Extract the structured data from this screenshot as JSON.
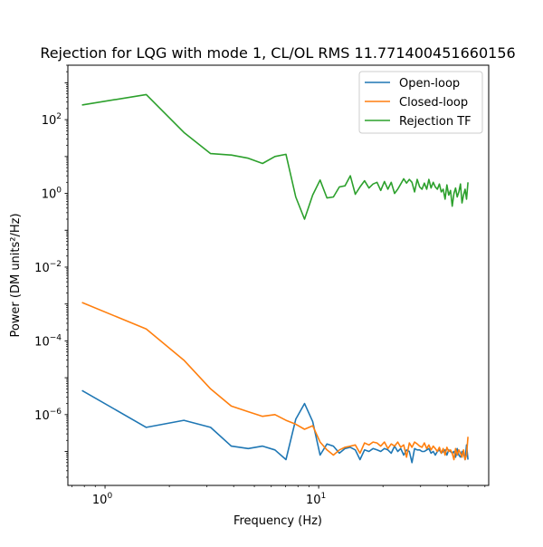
{
  "chart_data": {
    "type": "line",
    "title": "Rejection for LQG with mode 1, CL/OL RMS 11.771400451660156",
    "xlabel": "Frequency (Hz)",
    "ylabel": "Power (DM units²/Hz)",
    "xscale": "log",
    "yscale": "log",
    "xlim": [
      0.67,
      62.5
    ],
    "ylim": [
      1.2e-08,
      3000
    ],
    "x_ticks": [
      {
        "value": 1,
        "label": "10^0"
      },
      {
        "value": 10,
        "label": "10^1"
      }
    ],
    "y_ticks": [
      {
        "value": 1e-06,
        "label": "10^-6"
      },
      {
        "value": 0.0001,
        "label": "10^-4"
      },
      {
        "value": 0.01,
        "label": "10^-2"
      },
      {
        "value": 1,
        "label": "10^0"
      },
      {
        "value": 100,
        "label": "10^2"
      }
    ],
    "grid": false,
    "legend_position": "top-right",
    "series": [
      {
        "name": "Open-loop",
        "color": "#1f77b4",
        "x": [
          0.78,
          1.56,
          2.34,
          3.12,
          3.9,
          4.68,
          5.46,
          6.24,
          7.03,
          7.81,
          8.59,
          9.37,
          10.16,
          10.94,
          11.72,
          12.5,
          13.28,
          14.06,
          14.84,
          15.62,
          16.4,
          17.19,
          17.97,
          18.75,
          19.53,
          20.31,
          21.09,
          21.87,
          22.66,
          23.44,
          24.22,
          25,
          25.78,
          26.56,
          27.34,
          28.12,
          28.91,
          29.69,
          30.47,
          31.25,
          32.03,
          32.81,
          33.59,
          34.37,
          35.16,
          35.94,
          36.72,
          37.5,
          38.28,
          39.06,
          39.84,
          40.62,
          41.4,
          42.19,
          42.97,
          43.75,
          44.53,
          45.31,
          46.09,
          46.87,
          47.66,
          48.44,
          49.22,
          50
        ],
        "y": [
          4.5e-06,
          4.5e-07,
          7e-07,
          4.5e-07,
          1.4e-07,
          1.2e-07,
          1.4e-07,
          1.1e-07,
          6e-08,
          7.5e-07,
          2e-06,
          6.5e-07,
          8e-08,
          1.6e-07,
          1.4e-07,
          9e-08,
          1.2e-07,
          1.3e-07,
          1.1e-07,
          6e-08,
          1.1e-07,
          1e-07,
          1.2e-07,
          1.1e-07,
          1e-07,
          1.2e-07,
          1.1e-07,
          9e-08,
          1.4e-07,
          1e-07,
          1.2e-07,
          8e-08,
          1.1e-07,
          1e-07,
          5e-08,
          1.2e-07,
          1.1e-07,
          1.1e-07,
          1e-07,
          1e-07,
          1.1e-07,
          1.2e-07,
          9e-08,
          1e-07,
          8e-08,
          1e-07,
          1.1e-07,
          9e-08,
          1e-07,
          1.1e-07,
          8e-08,
          1.1e-07,
          1e-07,
          9e-08,
          1e-07,
          7e-08,
          1.2e-07,
          8e-08,
          7e-08,
          1e-07,
          9e-08,
          6e-08,
          1.5e-07,
          6e-08
        ]
      },
      {
        "name": "Closed-loop",
        "color": "#ff7f0e",
        "x": [
          0.78,
          1.56,
          2.34,
          3.12,
          3.9,
          4.68,
          5.46,
          6.24,
          7.03,
          7.81,
          8.59,
          9.37,
          10.16,
          10.94,
          11.72,
          12.5,
          13.28,
          14.06,
          14.84,
          15.62,
          16.4,
          17.19,
          17.97,
          18.75,
          19.53,
          20.31,
          21.09,
          21.87,
          22.66,
          23.44,
          24.22,
          25,
          25.78,
          26.56,
          27.34,
          28.12,
          28.91,
          29.69,
          30.47,
          31.25,
          32.03,
          32.81,
          33.59,
          34.37,
          35.16,
          35.94,
          36.72,
          37.5,
          38.28,
          39.06,
          39.84,
          40.62,
          41.4,
          42.19,
          42.97,
          43.75,
          44.53,
          45.31,
          46.09,
          46.87,
          47.66,
          48.44,
          49.22,
          50
        ],
        "y": [
          0.0011,
          0.00021,
          3e-05,
          5e-06,
          1.7e-06,
          1.2e-06,
          9e-07,
          1e-06,
          7e-07,
          5.5e-07,
          4e-07,
          5e-07,
          1.8e-07,
          1.1e-07,
          8e-08,
          1.1e-07,
          1.3e-07,
          1.4e-07,
          1.5e-07,
          9e-08,
          1.7e-07,
          1.5e-07,
          1.8e-07,
          1.7e-07,
          1.4e-07,
          1.8e-07,
          1.2e-07,
          1.6e-07,
          1.4e-07,
          1.8e-07,
          1.3e-07,
          1.5e-07,
          7e-08,
          1.7e-07,
          1.3e-07,
          1.8e-07,
          1.6e-07,
          1.4e-07,
          1.3e-07,
          1.7e-07,
          1.2e-07,
          1.5e-07,
          1.1e-07,
          1.4e-07,
          1.2e-07,
          1e-07,
          1.3e-07,
          9e-08,
          1.2e-07,
          8e-08,
          1.3e-07,
          1e-07,
          1.1e-07,
          9e-08,
          6e-08,
          1.2e-07,
          8e-08,
          1.1e-07,
          9e-08,
          7e-08,
          1.1e-07,
          6e-08,
          8e-08,
          2.5e-07
        ]
      },
      {
        "name": "Rejection TF",
        "color": "#2ca02c",
        "x": [
          0.78,
          1.56,
          2.34,
          3.12,
          3.9,
          4.68,
          5.46,
          6.24,
          7.03,
          7.81,
          8.59,
          9.37,
          10.16,
          10.94,
          11.72,
          12.5,
          13.28,
          14.06,
          14.84,
          15.62,
          16.4,
          17.19,
          17.97,
          18.75,
          19.53,
          20.31,
          21.09,
          21.87,
          22.66,
          23.44,
          24.22,
          25,
          25.78,
          26.56,
          27.34,
          28.12,
          28.91,
          29.69,
          30.47,
          31.25,
          32.03,
          32.81,
          33.59,
          34.37,
          35.16,
          35.94,
          36.72,
          37.5,
          38.28,
          39.06,
          39.84,
          40.62,
          41.4,
          42.19,
          42.97,
          43.75,
          44.53,
          45.31,
          46.09,
          46.87,
          47.66,
          48.44,
          49.22,
          50
        ],
        "y": [
          250,
          480,
          45,
          12,
          11,
          9,
          6.5,
          10,
          11.5,
          0.8,
          0.2,
          0.9,
          2.3,
          0.75,
          0.8,
          1.5,
          1.6,
          3,
          0.95,
          1.5,
          2.2,
          1.4,
          1.8,
          2,
          1.2,
          2.1,
          1.3,
          2,
          1,
          1.3,
          1.8,
          2.5,
          1.9,
          2.4,
          2,
          1.1,
          2.4,
          1.5,
          1.3,
          1.9,
          1.3,
          2.4,
          1.4,
          2,
          1.5,
          1.3,
          1.8,
          1.1,
          1.3,
          0.7,
          1.7,
          0.9,
          1.2,
          0.45,
          1,
          1.4,
          0.8,
          1.1,
          1.8,
          0.55,
          0.9,
          1.3,
          0.7,
          2
        ]
      }
    ]
  }
}
